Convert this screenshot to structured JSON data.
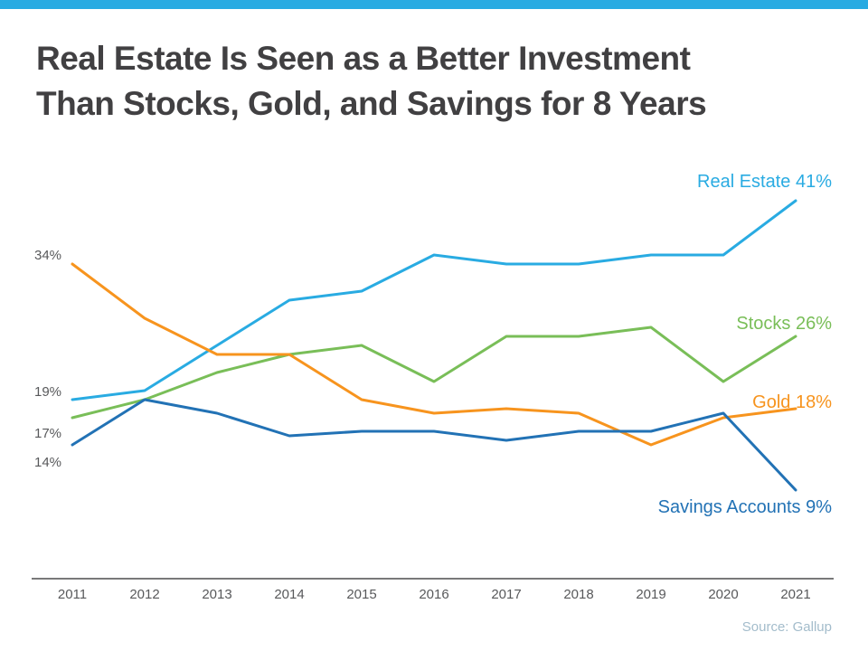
{
  "page": {
    "title_line1": "Real Estate Is Seen as a Better Investment",
    "title_line2": "Than Stocks, Gold, and Savings for 8 Years",
    "source": "Source: Gallup",
    "accent_bar_color": "#29ABE2"
  },
  "chart_data": {
    "type": "line",
    "title": "Real Estate Is Seen as a Better Investment Than Stocks, Gold, and Savings for 8 Years",
    "categories": [
      "2011",
      "2012",
      "2013",
      "2014",
      "2015",
      "2016",
      "2017",
      "2018",
      "2019",
      "2020",
      "2021"
    ],
    "series": [
      {
        "name": "Real Estate",
        "color": "#29ABE2",
        "values": [
          19,
          20,
          25,
          30,
          31,
          35,
          34,
          34,
          35,
          35,
          41
        ],
        "start_label": "19%",
        "end_label": "Real Estate 41%"
      },
      {
        "name": "Stocks",
        "color": "#79BE58",
        "values": [
          17,
          19,
          22,
          24,
          25,
          21,
          26,
          26,
          27,
          21,
          26
        ],
        "start_label": "17%",
        "end_label": "Stocks 26%"
      },
      {
        "name": "Gold",
        "color": "#F7941E",
        "values": [
          34,
          28,
          24,
          24,
          19,
          17.5,
          18,
          17.5,
          14,
          17,
          18
        ],
        "start_label": "34%",
        "end_label": "Gold 18%"
      },
      {
        "name": "Savings Accounts",
        "color": "#2272B5",
        "values": [
          14,
          19,
          17.5,
          15,
          15.5,
          15.5,
          14.5,
          15.5,
          15.5,
          17.5,
          9
        ],
        "start_label": "14%",
        "end_label": "Savings Accounts 9%"
      }
    ],
    "xlabel": "",
    "ylabel": "",
    "ylim": [
      5,
      45
    ],
    "grid": false,
    "legend_position": "line-end-labels",
    "source": "Source: Gallup"
  }
}
